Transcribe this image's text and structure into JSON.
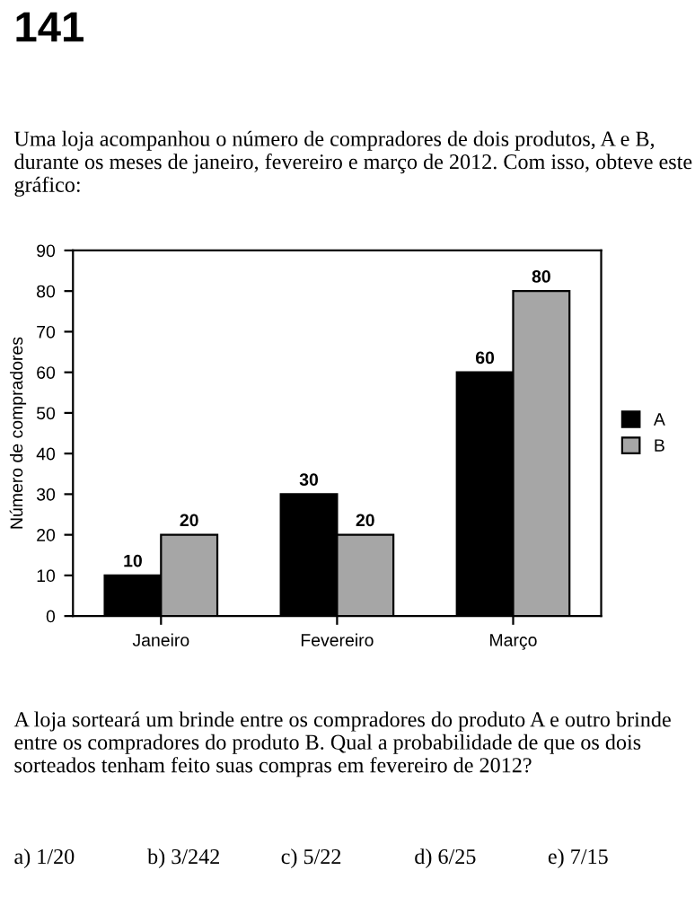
{
  "chart_data": {
    "type": "bar",
    "title": "Uma loja acompanhou o número de compradores de dois produtos, A e B, durante os meses de janeiro, fevereiro e março de 2012. Com isso, obteve este gráfico:",
    "ylabel": "Número de compradores",
    "categories": [
      "Janeiro",
      "Fevereiro",
      "Março"
    ],
    "series": [
      {
        "name": "A",
        "color": "#000000",
        "values": [
          10,
          30,
          60
        ]
      },
      {
        "name": "B",
        "color": "#a6a6a6",
        "values": [
          20,
          20,
          80
        ]
      }
    ],
    "ylim": [
      0,
      90
    ],
    "yticks": [
      0,
      10,
      20,
      30,
      40,
      50,
      60,
      70,
      80,
      90
    ],
    "grid": false,
    "legend": "right",
    "data_labels": true,
    "annotations": [
      "141",
      "A loja sorteará um brinde entre os compradores do produto A e outro brinde entre os compradores do produto B. Qual a probabilidade de que os dois sorteados tenham feito suas compras em fevereiro de 2012?",
      "a) 1/20",
      "b) 3/242",
      "c) 5/22",
      "d) 6/25",
      "e) 7/15"
    ]
  }
}
